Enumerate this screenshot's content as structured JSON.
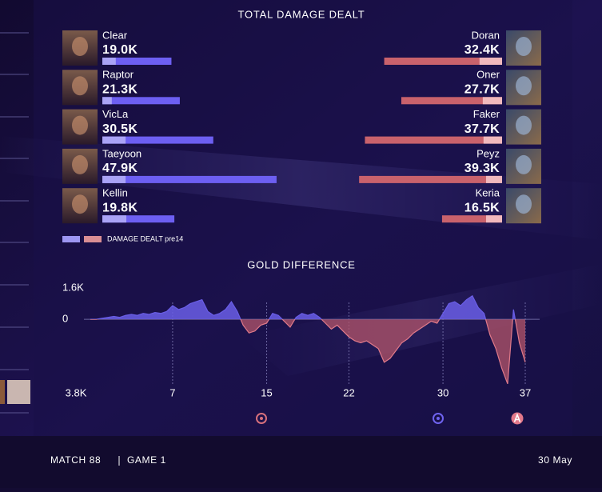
{
  "chart_data": [
    {
      "type": "bar",
      "title": "TOTAL DAMAGE DEALT",
      "legend_label": "DAMAGE DEALT pre14",
      "xlim": [
        0,
        50000
      ],
      "blue_team": {
        "players": [
          "Clear",
          "Raptor",
          "VicLa",
          "Taeyoon",
          "Kellin"
        ],
        "values": [
          19000,
          21300,
          30500,
          47900,
          19800
        ],
        "value_labels": [
          "19.0K",
          "21.3K",
          "30.5K",
          "47.9K",
          "19.8K"
        ],
        "pre14": [
          3700,
          2600,
          6400,
          6400,
          6600
        ],
        "color": "#6d5ff2",
        "pre14_color": "#aaa3f6",
        "legend_color": "#9d96f2"
      },
      "red_team": {
        "players": [
          "Doran",
          "Oner",
          "Faker",
          "Peyz",
          "Keria"
        ],
        "values": [
          32400,
          27700,
          37700,
          39300,
          16500
        ],
        "value_labels": [
          "32.4K",
          "27.7K",
          "37.7K",
          "39.3K",
          "16.5K"
        ],
        "pre14": [
          6200,
          5300,
          5100,
          4400,
          4400
        ],
        "color": "#c9626c",
        "pre14_color": "#f1b9bd",
        "legend_color": "#d98e94"
      }
    },
    {
      "type": "area",
      "title": "GOLD DIFFERENCE",
      "xlim": [
        0,
        37
      ],
      "xticks": [
        7,
        15,
        22,
        30,
        37
      ],
      "ylim": [
        -3800,
        1600
      ],
      "yticks": [
        {
          "value": 1600,
          "label": "1.6K"
        },
        0,
        {
          "value": -3800,
          "label": "3.8K"
        }
      ],
      "positive_color": "#6a5ee6",
      "negative_color": "#b4566a",
      "x": [
        0,
        0.5,
        1,
        1.5,
        2,
        2.5,
        3,
        3.5,
        4,
        4.5,
        5,
        5.5,
        6,
        6.5,
        7,
        7.5,
        8,
        8.5,
        9,
        9.5,
        10,
        10.5,
        11,
        11.5,
        12,
        12.5,
        13,
        13.5,
        14,
        14.5,
        15,
        15.5,
        16,
        16.5,
        17,
        17.5,
        18,
        18.5,
        19,
        19.5,
        20,
        20.5,
        21,
        21.5,
        22,
        22.5,
        23,
        23.5,
        24,
        24.5,
        25,
        25.5,
        26,
        26.5,
        27,
        27.5,
        28,
        28.5,
        29,
        29.5,
        30,
        30.5,
        31,
        31.5,
        32,
        32.5,
        33,
        33.5,
        34,
        34.5,
        35,
        35.5,
        36,
        36.5,
        37
      ],
      "values": [
        0,
        0,
        50,
        100,
        150,
        100,
        200,
        250,
        200,
        300,
        250,
        350,
        300,
        400,
        700,
        500,
        600,
        800,
        900,
        1000,
        400,
        200,
        300,
        500,
        900,
        400,
        -300,
        -700,
        -600,
        -300,
        -200,
        300,
        200,
        -100,
        -400,
        100,
        300,
        200,
        300,
        100,
        -200,
        -500,
        -300,
        -600,
        -900,
        -1100,
        -1200,
        -1100,
        -1300,
        -1500,
        -2200,
        -2000,
        -1600,
        -1200,
        -1000,
        -700,
        -500,
        -300,
        -100,
        -200,
        300,
        800,
        900,
        700,
        1000,
        1200,
        600,
        300,
        -800,
        -1500,
        -2500,
        -3300,
        500,
        -1200,
        -2200
      ]
    }
  ],
  "footer": {
    "match": "MATCH 88",
    "game": "GAME 1",
    "date": "30 May"
  }
}
